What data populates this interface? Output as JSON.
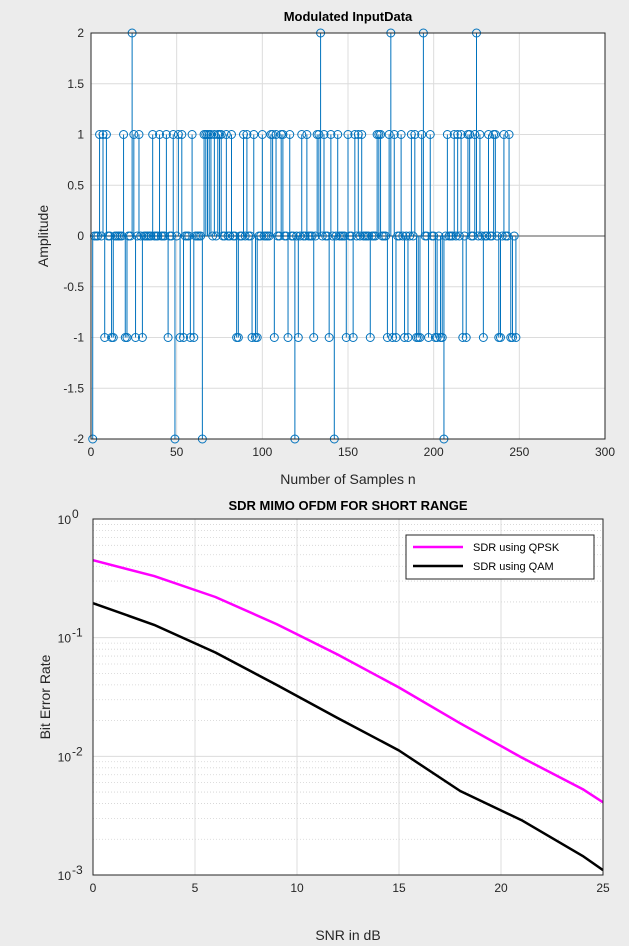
{
  "chart_data": [
    {
      "type": "stem",
      "title": "Modulated InputData",
      "xlabel": "Number of Samples n",
      "ylabel": "Amplitude",
      "xlim": [
        0,
        300
      ],
      "ylim": [
        -2,
        2
      ],
      "xticks": [
        0,
        50,
        100,
        150,
        200,
        250,
        300
      ],
      "yticks": [
        -2,
        -1.5,
        -1,
        -0.5,
        0,
        0.5,
        1,
        1.5,
        2
      ],
      "ytick_labels": [
        "-2",
        "-1.5",
        "-1",
        "-0.5",
        "0",
        "0.5",
        "1",
        "1.5",
        "2"
      ],
      "grid": true,
      "color": "#0072bd",
      "x_start": 1,
      "values": [
        -2,
        0,
        0,
        0,
        1,
        0,
        1,
        -1,
        1,
        0,
        0,
        -1,
        -1,
        0,
        0,
        0,
        0,
        0,
        1,
        -1,
        -1,
        0,
        0,
        2,
        1,
        -1,
        0,
        1,
        0,
        -1,
        0,
        0,
        0,
        0,
        0,
        1,
        0,
        0,
        0,
        1,
        0,
        0,
        0,
        1,
        -1,
        0,
        0,
        1,
        -2,
        0,
        1,
        -1,
        1,
        -1,
        0,
        0,
        0,
        -1,
        1,
        -1,
        0,
        0,
        0,
        0,
        -2,
        1,
        1,
        1,
        1,
        1,
        0,
        1,
        0,
        1,
        1,
        1,
        0,
        0,
        1,
        0,
        0,
        1,
        0,
        0,
        -1,
        -1,
        0,
        0,
        1,
        0,
        1,
        0,
        0,
        -1,
        1,
        -1,
        -1,
        0,
        0,
        1,
        0,
        0,
        0,
        0,
        1,
        1,
        -1,
        1,
        0,
        0,
        1,
        1,
        0,
        0,
        -1,
        1,
        0,
        0,
        -2,
        0,
        -1,
        0,
        1,
        0,
        0,
        1,
        0,
        0,
        0,
        -1,
        0,
        1,
        1,
        2,
        0,
        1,
        0,
        0,
        -1,
        1,
        0,
        -2,
        0,
        1,
        0,
        0,
        0,
        0,
        -1,
        1,
        0,
        0,
        -1,
        1,
        0,
        1,
        0,
        1,
        0,
        0,
        0,
        0,
        -1,
        0,
        0,
        0,
        1,
        1,
        1,
        0,
        0,
        0,
        -1,
        1,
        2,
        -1,
        1,
        -1,
        0,
        0,
        1,
        0,
        -1,
        0,
        -1,
        0,
        1,
        0,
        1,
        -1,
        -1,
        -1,
        1,
        2,
        0,
        0,
        -1,
        1,
        0,
        0,
        -1,
        -1,
        0,
        -1,
        -1,
        -2,
        0,
        1,
        0,
        0,
        0,
        1,
        0,
        1,
        0,
        1,
        -1,
        0,
        -1,
        1,
        1,
        0,
        0,
        1,
        2,
        0,
        1,
        0,
        -1,
        0,
        0,
        1,
        0,
        0,
        1,
        1,
        0,
        -1,
        -1,
        0,
        1,
        0,
        0,
        1,
        -1,
        -1,
        0,
        -1
      ],
      "series": [
        {
          "name": "",
          "values_ref": "values"
        }
      ]
    },
    {
      "type": "line",
      "title": "SDR MIMO OFDM FOR SHORT RANGE",
      "xlabel": "SNR in dB",
      "ylabel": "Bit Error Rate",
      "xlim": [
        0,
        25
      ],
      "ylim": [
        0.001,
        1
      ],
      "yscale": "log",
      "xticks": [
        0,
        5,
        10,
        15,
        20,
        25
      ],
      "ytick_exponents": [
        -3,
        -2,
        -1,
        0
      ],
      "ytick_base": "10",
      "grid": true,
      "minor_grid": true,
      "legend_position": "top-right",
      "x": [
        0,
        3,
        6,
        9,
        12,
        15,
        18,
        21,
        24,
        25
      ],
      "series": [
        {
          "name": "SDR using QPSK",
          "color": "#ff00ff",
          "values": [
            0.45,
            0.33,
            0.22,
            0.13,
            0.072,
            0.038,
            0.019,
            0.0098,
            0.0053,
            0.0041
          ]
        },
        {
          "name": "SDR using QAM",
          "color": "#000000",
          "values": [
            0.195,
            0.128,
            0.075,
            0.04,
            0.021,
            0.0112,
            0.0051,
            0.0029,
            0.00145,
            0.0011
          ]
        }
      ]
    }
  ]
}
